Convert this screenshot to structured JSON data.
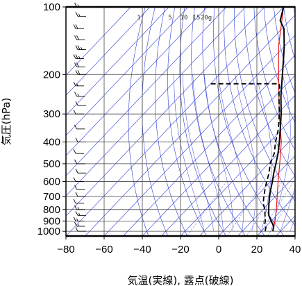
{
  "chart_data": {
    "type": "line",
    "subtype": "skew-t log-p diagram",
    "xlabel": "気温(実線), 露点(破線)",
    "ylabel": "気圧(hPa)",
    "xlim": [
      -80,
      40
    ],
    "ylim": [
      1050,
      100
    ],
    "y_scale": "log",
    "x_ticks": [
      -80,
      -60,
      -40,
      -20,
      0,
      20,
      40
    ],
    "y_ticks": [
      100,
      200,
      300,
      400,
      500,
      600,
      700,
      800,
      900,
      1000
    ],
    "mixing_ratio_labels": [
      "1",
      "5",
      "10",
      "15",
      "20g"
    ],
    "colors": {
      "temperature": "#000000",
      "dewpoint": "#000000",
      "parcel": "#e8141c",
      "background_lines": "#2b3bd6",
      "grid": "#444444",
      "wind_barbs": "#000000"
    },
    "series": [
      {
        "name": "",
        "style": "solid",
        "points": [
          {
            "p": 1000,
            "t": 26
          },
          {
            "p": 975,
            "t": 25
          },
          {
            "p": 950,
            "t": 24
          },
          {
            "p": 925,
            "t": 22
          },
          {
            "p": 900,
            "t": 20
          },
          {
            "p": 850,
            "t": 16
          },
          {
            "p": 800,
            "t": 13
          },
          {
            "p": 750,
            "t": 10
          },
          {
            "p": 700,
            "t": 7
          },
          {
            "p": 650,
            "t": 4
          },
          {
            "p": 600,
            "t": 1
          },
          {
            "p": 550,
            "t": -2.5
          },
          {
            "p": 500,
            "t": -6
          },
          {
            "p": 450,
            "t": -10
          },
          {
            "p": 400,
            "t": -15
          },
          {
            "p": 350,
            "t": -21
          },
          {
            "p": 300,
            "t": -28
          },
          {
            "p": 250,
            "t": -37
          },
          {
            "p": 200,
            "t": -47
          },
          {
            "p": 175,
            "t": -53
          },
          {
            "p": 150,
            "t": -60
          },
          {
            "p": 125,
            "t": -69
          },
          {
            "p": 115,
            "t": -75
          },
          {
            "p": 100,
            "t": -80
          }
        ]
      },
      {
        "name": "",
        "style": "dashed",
        "points": [
          {
            "p": 1000,
            "t": 22
          },
          {
            "p": 975,
            "t": 21
          },
          {
            "p": 950,
            "t": 20
          },
          {
            "p": 925,
            "t": 18
          },
          {
            "p": 900,
            "t": 17
          },
          {
            "p": 850,
            "t": 14
          },
          {
            "p": 800,
            "t": 11
          },
          {
            "p": 750,
            "t": 7
          },
          {
            "p": 700,
            "t": 4
          },
          {
            "p": 650,
            "t": 1
          },
          {
            "p": 600,
            "t": -2
          },
          {
            "p": 550,
            "t": -5
          },
          {
            "p": 500,
            "t": -9
          },
          {
            "p": 450,
            "t": -12
          },
          {
            "p": 400,
            "t": -17
          },
          {
            "p": 350,
            "t": -22
          },
          {
            "p": 300,
            "t": -29
          },
          {
            "p": 250,
            "t": -38
          },
          {
            "p": 220,
            "t": -44
          },
          {
            "p": 220,
            "t": -80
          }
        ]
      },
      {
        "name": "",
        "style": "solid",
        "points": [
          {
            "p": 1000,
            "t": 26
          },
          {
            "p": 900,
            "t": 22
          },
          {
            "p": 800,
            "t": 17
          },
          {
            "p": 700,
            "t": 11
          },
          {
            "p": 600,
            "t": 4
          },
          {
            "p": 500,
            "t": -4
          },
          {
            "p": 400,
            "t": -14
          },
          {
            "p": 300,
            "t": -29
          },
          {
            "p": 250,
            "t": -38
          },
          {
            "p": 200,
            "t": -49
          },
          {
            "p": 150,
            "t": -63
          },
          {
            "p": 100,
            "t": -80
          }
        ]
      }
    ],
    "wind_barbs": {
      "units": "kt",
      "levels": [
        {
          "p": 1000,
          "speed": 10
        },
        {
          "p": 950,
          "speed": 15
        },
        {
          "p": 900,
          "speed": 15
        },
        {
          "p": 850,
          "speed": 15
        },
        {
          "p": 800,
          "speed": 15
        },
        {
          "p": 750,
          "speed": 10
        },
        {
          "p": 700,
          "speed": 10
        },
        {
          "p": 650,
          "speed": 10
        },
        {
          "p": 600,
          "speed": 10
        },
        {
          "p": 550,
          "speed": 10
        },
        {
          "p": 500,
          "speed": 10
        },
        {
          "p": 450,
          "speed": 10
        },
        {
          "p": 400,
          "speed": 10
        },
        {
          "p": 350,
          "speed": 10
        },
        {
          "p": 300,
          "speed": 10
        },
        {
          "p": 275,
          "speed": 10
        },
        {
          "p": 250,
          "speed": 15
        },
        {
          "p": 225,
          "speed": 15
        },
        {
          "p": 200,
          "speed": 20
        },
        {
          "p": 185,
          "speed": 20
        },
        {
          "p": 170,
          "speed": 25
        },
        {
          "p": 155,
          "speed": 25
        },
        {
          "p": 140,
          "speed": 20
        },
        {
          "p": 125,
          "speed": 20
        },
        {
          "p": 110,
          "speed": 15
        },
        {
          "p": 100,
          "speed": 15
        }
      ]
    }
  }
}
